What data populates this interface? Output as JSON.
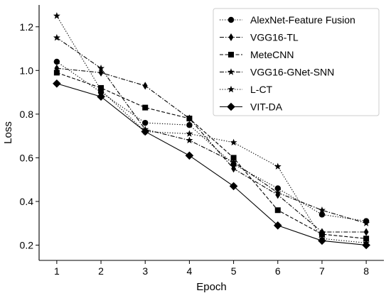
{
  "chart_data": {
    "type": "line",
    "title": "",
    "xlabel": "Epoch",
    "ylabel": "Loss",
    "x": [
      1,
      2,
      3,
      4,
      5,
      6,
      7,
      8
    ],
    "xlim": [
      0.6,
      8.4
    ],
    "ylim": [
      0.13,
      1.3
    ],
    "xticks": [
      1,
      2,
      3,
      4,
      5,
      6,
      7,
      8
    ],
    "yticks": [
      0.2,
      0.4,
      0.6,
      0.8,
      1.0,
      1.2
    ],
    "ytick_labels": [
      "0.2",
      "0.4",
      "0.6",
      "0.8",
      "1.0",
      "1.2"
    ],
    "grid": false,
    "legend_position": "top-right",
    "series": [
      {
        "name": "AlexNet-Feature Fusion",
        "marker": "circle",
        "dash": "dotted",
        "values": [
          1.04,
          0.9,
          0.76,
          0.75,
          0.57,
          0.46,
          0.34,
          0.31
        ]
      },
      {
        "name": "VGG16-TL",
        "marker": "thin-diamond",
        "dash": "dashdot",
        "values": [
          1.01,
          0.99,
          0.93,
          0.78,
          0.55,
          0.43,
          0.26,
          0.26
        ]
      },
      {
        "name": "MeteCNN",
        "marker": "square",
        "dash": "dashed",
        "values": [
          0.99,
          0.92,
          0.83,
          0.78,
          0.6,
          0.36,
          0.25,
          0.23
        ]
      },
      {
        "name": "VGG16-GNet-SNN",
        "marker": "star",
        "dash": "dashdot",
        "values": [
          1.15,
          1.01,
          0.73,
          0.68,
          0.58,
          0.44,
          0.36,
          0.3
        ]
      },
      {
        "name": "L-CT",
        "marker": "star",
        "dash": "dotted",
        "values": [
          1.25,
          0.91,
          0.72,
          0.71,
          0.67,
          0.56,
          0.23,
          0.21
        ]
      },
      {
        "name": "VIT-DA",
        "marker": "diamond",
        "dash": "solid",
        "values": [
          0.94,
          0.88,
          0.72,
          0.61,
          0.47,
          0.29,
          0.22,
          0.2
        ]
      }
    ]
  }
}
